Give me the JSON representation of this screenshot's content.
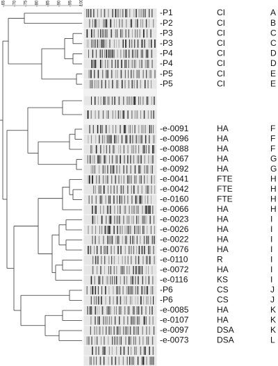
{
  "scale": {
    "ticks": [
      65,
      70,
      75,
      80,
      85,
      90,
      95,
      100
    ]
  },
  "rows": [
    {
      "id": "-P1",
      "source": "CI",
      "group": "A"
    },
    {
      "id": "-P2",
      "source": "CI",
      "group": "B"
    },
    {
      "id": "-P3",
      "source": "CI",
      "group": "C"
    },
    {
      "id": "-P3",
      "source": "CI",
      "group": "C"
    },
    {
      "id": "-P4",
      "source": "CI",
      "group": "D"
    },
    {
      "id": "-P4",
      "source": "CI",
      "group": "D"
    },
    {
      "id": "-P5",
      "source": "CI",
      "group": "E"
    },
    {
      "id": "-P5",
      "source": "CI",
      "group": "E"
    },
    {
      "id": "-e-0091",
      "source": "HA",
      "group": "F"
    },
    {
      "id": "-e-0096",
      "source": "HA",
      "group": "F"
    },
    {
      "id": "-e-0088",
      "source": "HA",
      "group": "F"
    },
    {
      "id": "-e-0067",
      "source": "HA",
      "group": "G"
    },
    {
      "id": "-e-0092",
      "source": "HA",
      "group": "G"
    },
    {
      "id": "-e-0041",
      "source": "FTE",
      "group": "H"
    },
    {
      "id": "-e-0042",
      "source": "FTE",
      "group": "H"
    },
    {
      "id": "-e-0160",
      "source": "FTE",
      "group": "H"
    },
    {
      "id": "-e-0066",
      "source": "HA",
      "group": "H"
    },
    {
      "id": "-e-0023",
      "source": "HA",
      "group": "I"
    },
    {
      "id": "-e-0026",
      "source": "HA",
      "group": "I"
    },
    {
      "id": "-e-0022",
      "source": "HA",
      "group": "I"
    },
    {
      "id": "-e-0076",
      "source": "HA",
      "group": "I"
    },
    {
      "id": "-e-0110",
      "source": "R",
      "group": "I"
    },
    {
      "id": "-e-0072",
      "source": "HA",
      "group": "I"
    },
    {
      "id": "-e-0116",
      "source": "KS",
      "group": "I"
    },
    {
      "id": "-P6",
      "source": "CS",
      "group": "J"
    },
    {
      "id": "-P6",
      "source": "CS",
      "group": "J"
    },
    {
      "id": "-e-0085",
      "source": "HA",
      "group": "K"
    },
    {
      "id": "-e-0107",
      "source": "HA",
      "group": "K"
    },
    {
      "id": "-e-0097",
      "source": "DSA",
      "group": "K"
    },
    {
      "id": "-e-0073",
      "source": "DSA",
      "group": "L"
    }
  ]
}
